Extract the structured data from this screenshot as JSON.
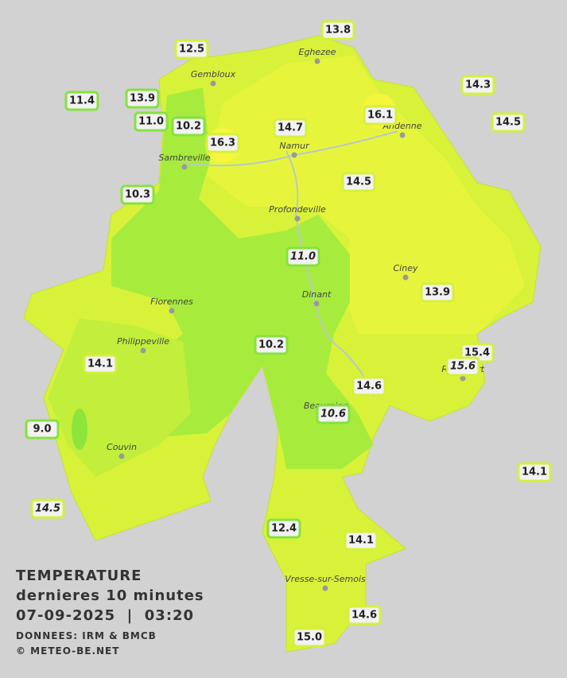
{
  "title": {
    "line1": "TEMPERATURE",
    "line2": "dernieres 10 minutes",
    "line3": "07-09-2025  |  03:20",
    "source": "DONNEES: IRM & BMCB",
    "credit": "© METEO-BE.NET"
  },
  "cities": [
    "Eghezee",
    "Gembloux",
    "Andenne",
    "Namur",
    "Sambreville",
    "Profondeville",
    "Ciney",
    "Florennes",
    "Dinant",
    "Philippeville",
    "Rochefort",
    "Beauraing",
    "Couvin",
    "Vresse-sur-Semois"
  ],
  "stations": [
    "13.8",
    "12.5",
    "14.3",
    "11.4",
    "13.9",
    "16.1",
    "11.0",
    "10.2",
    "14.7",
    "14.5",
    "16.3",
    "14.5",
    "10.3",
    "11.0",
    "13.9",
    "15.4",
    "10.2",
    "15.6",
    "14.1",
    "14.6",
    "10.6",
    "9.0",
    "14.1",
    "14.5",
    "12.4",
    "14.1",
    "14.6",
    "15.0"
  ]
}
